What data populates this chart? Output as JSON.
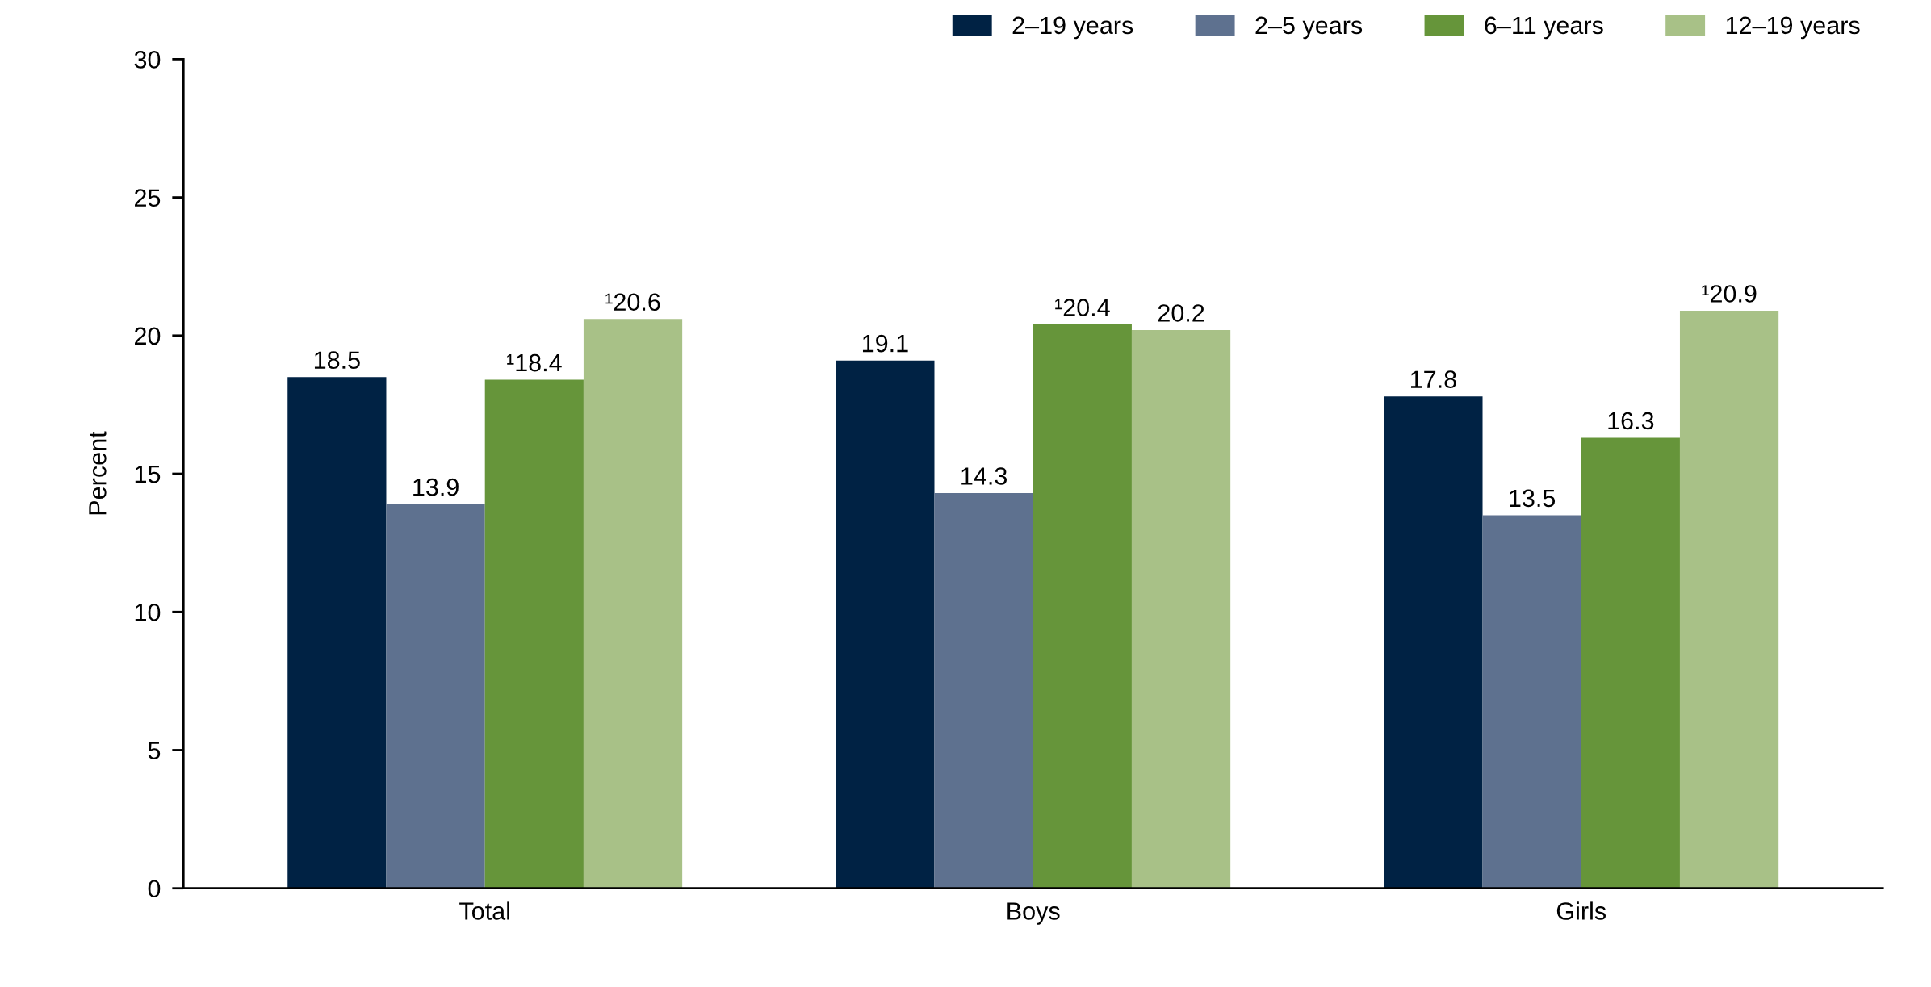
{
  "chart_data": {
    "type": "bar",
    "ylabel": "Percent",
    "categories": [
      "Total",
      "Boys",
      "Girls"
    ],
    "series": [
      {
        "name": "2–19 years",
        "color": "#002244",
        "values": [
          18.5,
          19.1,
          17.8
        ],
        "value_labels": [
          "18.5",
          "19.1",
          "17.8"
        ]
      },
      {
        "name": "2–5 years",
        "color": "#5e718f",
        "values": [
          13.9,
          14.3,
          13.5
        ],
        "value_labels": [
          "13.9",
          "14.3",
          "13.5"
        ]
      },
      {
        "name": "6–11 years",
        "color": "#66953a",
        "values": [
          18.4,
          20.4,
          16.3
        ],
        "value_labels": [
          "¹18.4",
          "¹20.4",
          "16.3"
        ]
      },
      {
        "name": "12–19 years",
        "color": "#a8c187",
        "values": [
          20.6,
          20.2,
          20.9
        ],
        "value_labels": [
          "¹20.6",
          "20.2",
          "¹20.9"
        ]
      }
    ],
    "ylim": [
      0,
      30
    ],
    "yticks": [
      0,
      5,
      10,
      15,
      20,
      25,
      30
    ],
    "grid": false,
    "legend": "top right"
  }
}
